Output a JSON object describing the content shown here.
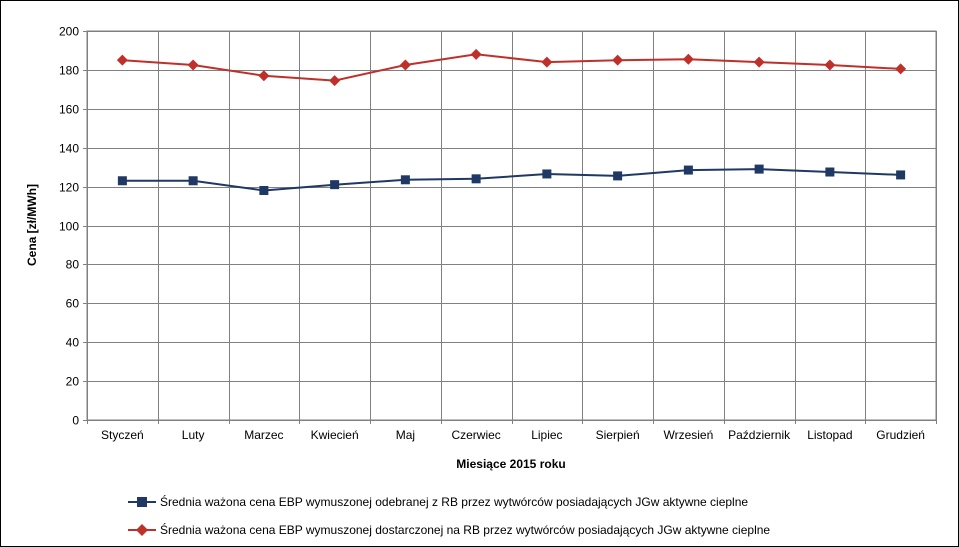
{
  "chart_data": {
    "type": "line",
    "title": "",
    "xlabel": "Miesiące 2015  roku",
    "ylabel": "Cena [zł/MWh]",
    "ylim": [
      0,
      200
    ],
    "yticks": [
      0,
      20,
      40,
      60,
      80,
      100,
      120,
      140,
      160,
      180,
      200
    ],
    "grid": true,
    "legend_position": "bottom",
    "categories": [
      "Styczeń",
      "Luty",
      "Marzec",
      "Kwiecień",
      "Maj",
      "Czerwiec",
      "Lipiec",
      "Sierpień",
      "Wrzesień",
      "Październik",
      "Listopad",
      "Grudzień"
    ],
    "series": [
      {
        "name": "Średnia ważona cena EBP wymuszonej odebranej z RB przez wytwórców posiadających JGw aktywne cieplne",
        "color": "#1f3864",
        "marker": "square",
        "values": [
          123,
          123,
          118,
          121,
          123.5,
          124,
          126.5,
          125.5,
          128.5,
          129,
          127.5,
          126
        ]
      },
      {
        "name": "Średnia ważona cena EBP wymuszonej dostarczonej na RB przez wytwórców posiadających JGw aktywne cieplne",
        "color": "#c0302b",
        "marker": "diamond",
        "values": [
          185,
          182.5,
          177,
          174.5,
          182.5,
          188,
          184,
          185,
          185.5,
          184,
          182.5,
          180.5
        ]
      }
    ]
  }
}
